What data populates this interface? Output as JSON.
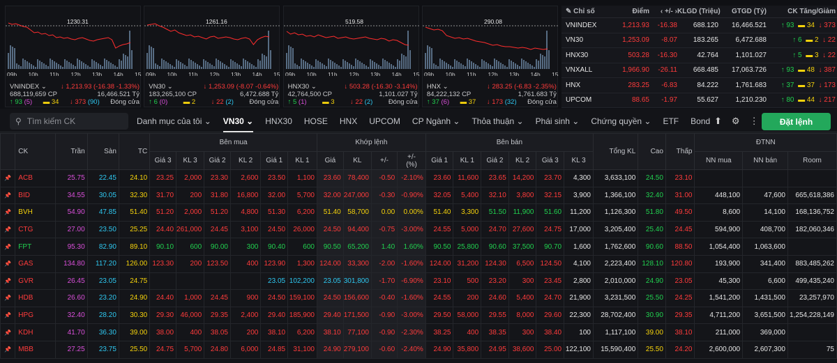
{
  "charts": [
    {
      "name": "VNINDEX",
      "ref": "1230.31",
      "vol": "688,119,659 CP",
      "price": "1,213.93",
      "change": "-16.38",
      "pct": "-1.33%",
      "value": "16,466.521 Tỷ",
      "up": "93",
      "ceil_up": "5",
      "ref_cnt": "34",
      "down": "373",
      "floor_down": "90",
      "status": "Đóng cửa",
      "arrow": "↓"
    },
    {
      "name": "VN30",
      "ref": "1261.16",
      "vol": "183,265,100 CP",
      "price": "1,253.09",
      "change": "-8.07",
      "pct": "-0.64%",
      "value": "6,472.688 Tỷ",
      "up": "6",
      "ceil_up": "0",
      "ref_cnt": "2",
      "down": "22",
      "floor_down": "2",
      "status": "Đóng cửa",
      "arrow": "↓"
    },
    {
      "name": "HNX30",
      "ref": "519.58",
      "vol": "42,764,500 CP",
      "price": "503.28",
      "change": "-16.30",
      "pct": "-3.14%",
      "value": "1,101.027 Tỷ",
      "up": "5",
      "ceil_up": "1",
      "ref_cnt": "3",
      "down": "22",
      "floor_down": "2",
      "status": "Đóng cửa",
      "arrow": "↓"
    },
    {
      "name": "HNX",
      "ref": "290.08",
      "vol": "84,222,132 CP",
      "price": "283.25",
      "change": "-6.83",
      "pct": "-2.35%",
      "value": "1,761.683 Tỷ",
      "up": "37",
      "ceil_up": "6",
      "ref_cnt": "37",
      "down": "173",
      "floor_down": "32",
      "status": "Đóng cửa",
      "arrow": "↓"
    }
  ],
  "time_labels": [
    "09h",
    "10h",
    "11h",
    "12h",
    "13h",
    "14h",
    "15h"
  ],
  "index_table": {
    "headers": [
      "Chỉ số",
      "Điểm",
      "+/-",
      "KLGD (Triệu)",
      "GTGD (Tỷ)",
      "CK Tăng/Giảm"
    ],
    "rows": [
      {
        "name": "VNINDEX",
        "point": "1,213.93",
        "change": "-16.38",
        "vol": "688.120",
        "val": "16,466.521",
        "up": "93",
        "ref": "34",
        "down": "373"
      },
      {
        "name": "VN30",
        "point": "1,253.09",
        "change": "-8.07",
        "vol": "183.265",
        "val": "6,472.688",
        "up": "6",
        "ref": "2",
        "down": "22"
      },
      {
        "name": "HNX30",
        "point": "503.28",
        "change": "-16.30",
        "vol": "42.764",
        "val": "1,101.027",
        "up": "5",
        "ref": "3",
        "down": "22"
      },
      {
        "name": "VNXALL",
        "point": "1,966.90",
        "change": "-26.11",
        "vol": "668.485",
        "val": "17,063.726",
        "up": "93",
        "ref": "48",
        "down": "387"
      },
      {
        "name": "HNX",
        "point": "283.25",
        "change": "-6.83",
        "vol": "84.222",
        "val": "1,761.683",
        "up": "37",
        "ref": "37",
        "down": "173"
      },
      {
        "name": "UPCOM",
        "point": "88.65",
        "change": "-1.97",
        "vol": "55.627",
        "val": "1,210.230",
        "up": "80",
        "ref": "44",
        "down": "217"
      }
    ]
  },
  "toolbar": {
    "search_placeholder": "Tìm kiếm CK",
    "tabs": [
      "Danh mục của tôi",
      "VN30",
      "HNX30",
      "HOSE",
      "HNX",
      "UPCOM",
      "CP Ngành",
      "Thỏa thuận",
      "Phái sinh",
      "Chứng quyền",
      "ETF",
      "Bond"
    ],
    "order_label": "Đặt lệnh"
  },
  "board": {
    "group_headers": {
      "buy": "Bên mua",
      "match": "Khớp lệnh",
      "sell": "Bên bán",
      "foreign": "ĐTNN"
    },
    "columns": [
      "CK",
      "Trần",
      "Sàn",
      "TC",
      "Giá 3",
      "KL 3",
      "Giá 2",
      "KL 2",
      "Giá 1",
      "KL 1",
      "Giá",
      "KL",
      "+/-",
      "+/- (%)",
      "Giá 1",
      "KL 1",
      "Giá 2",
      "KL 2",
      "Giá 3",
      "KL 3",
      "Tổng KL",
      "Cao",
      "Thấp",
      "NN mua",
      "NN bán",
      "Room"
    ],
    "rows": [
      {
        "sym": "ACB",
        "c": "r",
        "v": [
          "25.75",
          "22.45",
          "24.10",
          "23.25",
          "2,000",
          "23.30",
          "2,600",
          "23.50",
          "1,100",
          "23.60",
          "78,400",
          "-0.50",
          "-2.10%",
          "23.60",
          "11,600",
          "23.65",
          "14,200",
          "23.70",
          "4,300",
          "3,633,100",
          "24.50",
          "23.10",
          "",
          "",
          ""
        ]
      },
      {
        "sym": "BID",
        "c": "r",
        "v": [
          "34.55",
          "30.05",
          "32.30",
          "31.70",
          "200",
          "31.80",
          "16,800",
          "32.00",
          "5,700",
          "32.00",
          "247,000",
          "-0.30",
          "-0.90%",
          "32.05",
          "5,400",
          "32.10",
          "3,800",
          "32.15",
          "3,900",
          "1,366,100",
          "32.40",
          "31.00",
          "448,100",
          "47,600",
          "665,618,386"
        ]
      },
      {
        "sym": "BVH",
        "c": "y",
        "v": [
          "54.90",
          "47.85",
          "51.40",
          "51.20",
          "2,000",
          "51.20",
          "4,800",
          "51.30",
          "6,200",
          "51.40",
          "58,700",
          "0.00",
          "0.00%",
          "51.40",
          "3,300",
          "51.50",
          "11,900",
          "51.60",
          "11,200",
          "1,126,300",
          "51.80",
          "49.50",
          "8,600",
          "14,100",
          "168,136,752"
        ]
      },
      {
        "sym": "CTG",
        "c": "r",
        "v": [
          "27.00",
          "23.50",
          "25.25",
          "24.40",
          "261,000",
          "24.45",
          "3,100",
          "24.50",
          "26,000",
          "24.50",
          "94,400",
          "-0.75",
          "-3.00%",
          "24.55",
          "5,000",
          "24.70",
          "27,600",
          "24.75",
          "17,000",
          "3,205,400",
          "25.40",
          "24.45",
          "594,900",
          "408,700",
          "182,060,346"
        ]
      },
      {
        "sym": "FPT",
        "c": "g",
        "v": [
          "95.30",
          "82.90",
          "89.10",
          "90.10",
          "600",
          "90.00",
          "300",
          "90.40",
          "600",
          "90.50",
          "65,200",
          "1.40",
          "1.60%",
          "90.50",
          "25,800",
          "90.60",
          "37,500",
          "90.70",
          "1,600",
          "1,762,600",
          "90.60",
          "88.50",
          "1,054,400",
          "1,063,600",
          ""
        ]
      },
      {
        "sym": "GAS",
        "c": "r",
        "v": [
          "134.80",
          "117.20",
          "126.00",
          "123.30",
          "200",
          "123.50",
          "400",
          "123.90",
          "1,300",
          "124.00",
          "33,300",
          "-2.00",
          "-1.60%",
          "124.00",
          "31,200",
          "124.30",
          "6,500",
          "124.50",
          "4,100",
          "2,223,400",
          "128.10",
          "120.80",
          "193,900",
          "341,400",
          "883,485,262"
        ]
      },
      {
        "sym": "GVR",
        "c": "r",
        "v": [
          "26.45",
          "23.05",
          "24.75",
          "",
          "",
          "",
          "",
          "23.05",
          "102,200",
          "23.05",
          "301,800",
          "-1.70",
          "-6.90%",
          "23.10",
          "500",
          "23.20",
          "300",
          "23.45",
          "2,800",
          "2,010,000",
          "24.90",
          "23.05",
          "45,300",
          "6,600",
          "499,435,240"
        ]
      },
      {
        "sym": "HDB",
        "c": "r",
        "v": [
          "26.60",
          "23.20",
          "24.90",
          "24.40",
          "1,000",
          "24.45",
          "900",
          "24.50",
          "159,100",
          "24.50",
          "156,600",
          "-0.40",
          "-1.60%",
          "24.55",
          "200",
          "24.60",
          "5,400",
          "24.70",
          "21,900",
          "3,231,500",
          "25.50",
          "24.25",
          "1,541,200",
          "1,431,500",
          "23,257,970"
        ]
      },
      {
        "sym": "HPG",
        "c": "r",
        "v": [
          "32.40",
          "28.20",
          "30.30",
          "29.30",
          "46,000",
          "29.35",
          "2,400",
          "29.40",
          "185,900",
          "29.40",
          "171,500",
          "-0.90",
          "-3.00%",
          "29.50",
          "58,000",
          "29.55",
          "8,000",
          "29.60",
          "22,300",
          "28,702,400",
          "30.90",
          "29.35",
          "4,711,200",
          "3,651,500",
          "1,254,228,149"
        ]
      },
      {
        "sym": "KDH",
        "c": "r",
        "v": [
          "41.70",
          "36.30",
          "39.00",
          "38.00",
          "400",
          "38.05",
          "200",
          "38.10",
          "6,200",
          "38.10",
          "77,100",
          "-0.90",
          "-2.30%",
          "38.25",
          "400",
          "38.35",
          "300",
          "38.40",
          "100",
          "1,117,100",
          "39.00",
          "38.10",
          "211,000",
          "369,000",
          ""
        ]
      },
      {
        "sym": "MBB",
        "c": "r",
        "v": [
          "27.25",
          "23.75",
          "25.50",
          "24.75",
          "5,700",
          "24.80",
          "6,000",
          "24.85",
          "31,100",
          "24.90",
          "279,100",
          "-0.60",
          "-2.40%",
          "24.90",
          "35,800",
          "24.95",
          "38,600",
          "25.00",
          "122,100",
          "15,590,400",
          "25.50",
          "24.20",
          "2,600,000",
          "2,607,300",
          "75"
        ]
      }
    ]
  }
}
